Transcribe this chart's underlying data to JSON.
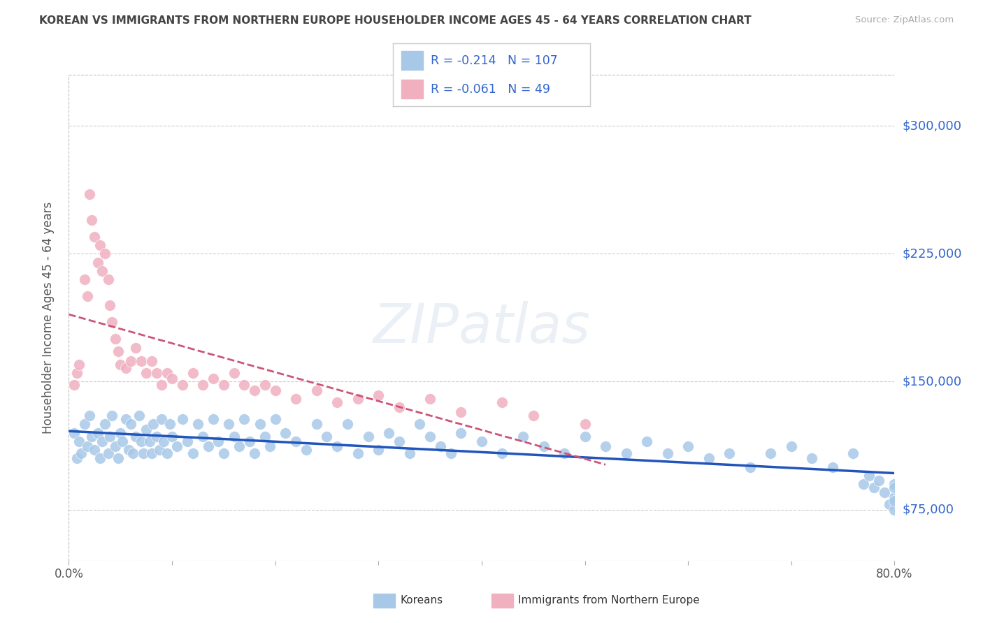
{
  "title": "KOREAN VS IMMIGRANTS FROM NORTHERN EUROPE HOUSEHOLDER INCOME AGES 45 - 64 YEARS CORRELATION CHART",
  "source": "Source: ZipAtlas.com",
  "ylabel": "Householder Income Ages 45 - 64 years",
  "xlim": [
    0.0,
    0.8
  ],
  "ylim": [
    45000,
    330000
  ],
  "yticks": [
    75000,
    150000,
    225000,
    300000
  ],
  "ytick_labels": [
    "$75,000",
    "$150,000",
    "$225,000",
    "$300,000"
  ],
  "xticks": [
    0.0,
    0.1,
    0.2,
    0.3,
    0.4,
    0.5,
    0.6,
    0.7,
    0.8
  ],
  "korean_R": -0.214,
  "korean_N": 107,
  "north_europe_R": -0.061,
  "north_europe_N": 49,
  "korean_color": "#a8c8e8",
  "north_europe_color": "#f0b0c0",
  "korean_line_color": "#2255bb",
  "north_europe_line_color": "#cc5577",
  "background_color": "#ffffff",
  "grid_color": "#cccccc",
  "legend_color": "#3366cc",
  "title_color": "#444444",
  "source_color": "#aaaaaa",
  "korean_x": [
    0.005,
    0.008,
    0.01,
    0.012,
    0.015,
    0.018,
    0.02,
    0.022,
    0.025,
    0.028,
    0.03,
    0.032,
    0.035,
    0.038,
    0.04,
    0.042,
    0.045,
    0.048,
    0.05,
    0.052,
    0.055,
    0.058,
    0.06,
    0.062,
    0.065,
    0.068,
    0.07,
    0.072,
    0.075,
    0.078,
    0.08,
    0.082,
    0.085,
    0.088,
    0.09,
    0.092,
    0.095,
    0.098,
    0.1,
    0.105,
    0.11,
    0.115,
    0.12,
    0.125,
    0.13,
    0.135,
    0.14,
    0.145,
    0.15,
    0.155,
    0.16,
    0.165,
    0.17,
    0.175,
    0.18,
    0.185,
    0.19,
    0.195,
    0.2,
    0.21,
    0.22,
    0.23,
    0.24,
    0.25,
    0.26,
    0.27,
    0.28,
    0.29,
    0.3,
    0.31,
    0.32,
    0.33,
    0.34,
    0.35,
    0.36,
    0.37,
    0.38,
    0.4,
    0.42,
    0.44,
    0.46,
    0.48,
    0.5,
    0.52,
    0.54,
    0.56,
    0.58,
    0.6,
    0.62,
    0.64,
    0.66,
    0.68,
    0.7,
    0.72,
    0.74,
    0.76,
    0.77,
    0.775,
    0.78,
    0.785,
    0.79,
    0.795,
    0.8,
    0.8,
    0.8,
    0.8,
    0.8
  ],
  "korean_y": [
    120000,
    105000,
    115000,
    108000,
    125000,
    112000,
    130000,
    118000,
    110000,
    120000,
    105000,
    115000,
    125000,
    108000,
    118000,
    130000,
    112000,
    105000,
    120000,
    115000,
    128000,
    110000,
    125000,
    108000,
    118000,
    130000,
    115000,
    108000,
    122000,
    115000,
    108000,
    125000,
    118000,
    110000,
    128000,
    115000,
    108000,
    125000,
    118000,
    112000,
    128000,
    115000,
    108000,
    125000,
    118000,
    112000,
    128000,
    115000,
    108000,
    125000,
    118000,
    112000,
    128000,
    115000,
    108000,
    125000,
    118000,
    112000,
    128000,
    120000,
    115000,
    110000,
    125000,
    118000,
    112000,
    125000,
    108000,
    118000,
    110000,
    120000,
    115000,
    108000,
    125000,
    118000,
    112000,
    108000,
    120000,
    115000,
    108000,
    118000,
    112000,
    108000,
    118000,
    112000,
    108000,
    115000,
    108000,
    112000,
    105000,
    108000,
    100000,
    108000,
    112000,
    105000,
    100000,
    108000,
    90000,
    95000,
    88000,
    92000,
    85000,
    78000,
    90000,
    82000,
    75000,
    88000,
    80000
  ],
  "north_europe_x": [
    0.005,
    0.008,
    0.01,
    0.015,
    0.018,
    0.02,
    0.022,
    0.025,
    0.028,
    0.03,
    0.032,
    0.035,
    0.038,
    0.04,
    0.042,
    0.045,
    0.048,
    0.05,
    0.055,
    0.06,
    0.065,
    0.07,
    0.075,
    0.08,
    0.085,
    0.09,
    0.095,
    0.1,
    0.11,
    0.12,
    0.13,
    0.14,
    0.15,
    0.16,
    0.17,
    0.18,
    0.19,
    0.2,
    0.22,
    0.24,
    0.26,
    0.28,
    0.3,
    0.32,
    0.35,
    0.38,
    0.42,
    0.45,
    0.5
  ],
  "north_europe_y": [
    148000,
    155000,
    160000,
    210000,
    200000,
    260000,
    245000,
    235000,
    220000,
    230000,
    215000,
    225000,
    210000,
    195000,
    185000,
    175000,
    168000,
    160000,
    158000,
    162000,
    170000,
    162000,
    155000,
    162000,
    155000,
    148000,
    155000,
    152000,
    148000,
    155000,
    148000,
    152000,
    148000,
    155000,
    148000,
    145000,
    148000,
    145000,
    140000,
    145000,
    138000,
    140000,
    142000,
    135000,
    140000,
    132000,
    138000,
    130000,
    125000
  ]
}
